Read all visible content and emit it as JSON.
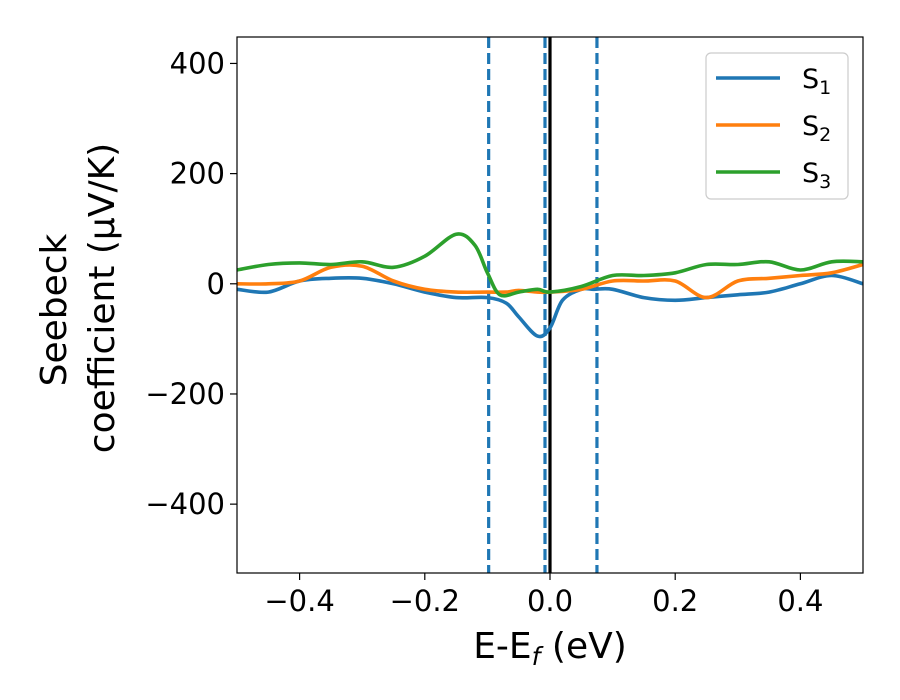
{
  "chart_data": {
    "type": "line",
    "xlabel": "E-E",
    "xlabel_sub": "f",
    "xlabel_unit": " (eV)",
    "ylabel_line1": "Seebeck",
    "ylabel_line2": "coefficient  (μV/K)",
    "xlim": [
      -0.5,
      0.5
    ],
    "ylim": [
      -525,
      448
    ],
    "xticks": [
      -0.4,
      -0.2,
      0.0,
      0.2,
      0.4
    ],
    "xtick_labels": [
      "−0.4",
      "−0.2",
      "0.0",
      "0.2",
      "0.4"
    ],
    "yticks": [
      400,
      200,
      0,
      -200,
      -400
    ],
    "ytick_labels": [
      "400",
      "200",
      "0",
      "−200",
      "−400"
    ],
    "grid": false,
    "legend_position": "top-right",
    "vlines": [
      {
        "x": -0.098,
        "style": "dashed",
        "color": "#1f77b4"
      },
      {
        "x": -0.008,
        "style": "dashed",
        "color": "#1f77b4"
      },
      {
        "x": 0.0,
        "style": "solid",
        "color": "#000000"
      },
      {
        "x": 0.075,
        "style": "dashed",
        "color": "#1f77b4"
      }
    ],
    "series": [
      {
        "name": "S",
        "sub": "1",
        "color": "#1f77b4",
        "x": [
          -0.5,
          -0.45,
          -0.4,
          -0.35,
          -0.3,
          -0.25,
          -0.2,
          -0.15,
          -0.1,
          -0.07,
          -0.05,
          -0.02,
          0.0,
          0.02,
          0.05,
          0.07,
          0.1,
          0.15,
          0.2,
          0.25,
          0.3,
          0.35,
          0.4,
          0.45,
          0.5
        ],
        "y": [
          -10,
          -15,
          5,
          10,
          10,
          0,
          -15,
          -25,
          -25,
          -35,
          -60,
          -95,
          -80,
          -30,
          -10,
          -10,
          -10,
          -25,
          -30,
          -25,
          -20,
          -15,
          0,
          15,
          0
        ]
      },
      {
        "name": "S",
        "sub": "2",
        "color": "#ff7f0e",
        "x": [
          -0.5,
          -0.45,
          -0.4,
          -0.35,
          -0.3,
          -0.25,
          -0.2,
          -0.15,
          -0.1,
          -0.07,
          -0.05,
          -0.02,
          0.0,
          0.05,
          0.1,
          0.15,
          0.2,
          0.25,
          0.3,
          0.35,
          0.4,
          0.45,
          0.5
        ],
        "y": [
          0,
          0,
          5,
          30,
          32,
          5,
          -10,
          -15,
          -15,
          -15,
          -12,
          -15,
          -15,
          -10,
          5,
          5,
          5,
          -25,
          5,
          10,
          15,
          20,
          35
        ]
      },
      {
        "name": "S",
        "sub": "3",
        "color": "#2ca02c",
        "x": [
          -0.5,
          -0.45,
          -0.4,
          -0.35,
          -0.3,
          -0.25,
          -0.2,
          -0.15,
          -0.12,
          -0.1,
          -0.08,
          -0.05,
          -0.02,
          0.0,
          0.05,
          0.1,
          0.15,
          0.2,
          0.25,
          0.3,
          0.35,
          0.4,
          0.45,
          0.5
        ],
        "y": [
          25,
          35,
          38,
          35,
          40,
          30,
          50,
          90,
          70,
          20,
          -20,
          -15,
          -10,
          -15,
          -5,
          15,
          15,
          20,
          35,
          35,
          40,
          25,
          40,
          40
        ]
      }
    ]
  }
}
